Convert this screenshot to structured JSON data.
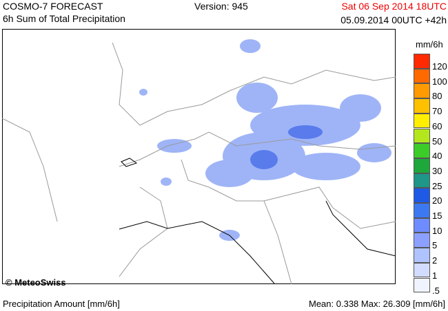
{
  "header": {
    "title": "COSMO-7 FORECAST",
    "subtitle": "6h Sum of Total Precipitation",
    "version": "Version: 945",
    "valid_time": "Sat 06 Sep 2014 18UTC",
    "run": "05.09.2014 00UTC +42h"
  },
  "legend": {
    "unit": "mm/6h",
    "items": [
      {
        "label": "120",
        "color": "#ff2a00"
      },
      {
        "label": "100",
        "color": "#ff6a00"
      },
      {
        "label": "80",
        "color": "#ff9a00"
      },
      {
        "label": "70",
        "color": "#ffc000"
      },
      {
        "label": "60",
        "color": "#ffee00"
      },
      {
        "label": "50",
        "color": "#b4e61e"
      },
      {
        "label": "40",
        "color": "#3ccc28"
      },
      {
        "label": "30",
        "color": "#1ea83c"
      },
      {
        "label": "25",
        "color": "#1e9688"
      },
      {
        "label": "20",
        "color": "#1e5ae6"
      },
      {
        "label": "15",
        "color": "#3c78f0"
      },
      {
        "label": "10",
        "color": "#6e8cff"
      },
      {
        "label": "5",
        "color": "#8ca0ff"
      },
      {
        "label": "2",
        "color": "#afc3ff"
      },
      {
        "label": "1",
        "color": "#d2dcff"
      },
      {
        "label": ".5",
        "color": "#f0f4ff"
      }
    ]
  },
  "map": {
    "copyright": "© MeteoSwiss"
  },
  "footer": {
    "left": "Precipitation Amount [mm/6h]",
    "right": "Mean:  0.338 Max: 26.309 [mm/6h]"
  }
}
